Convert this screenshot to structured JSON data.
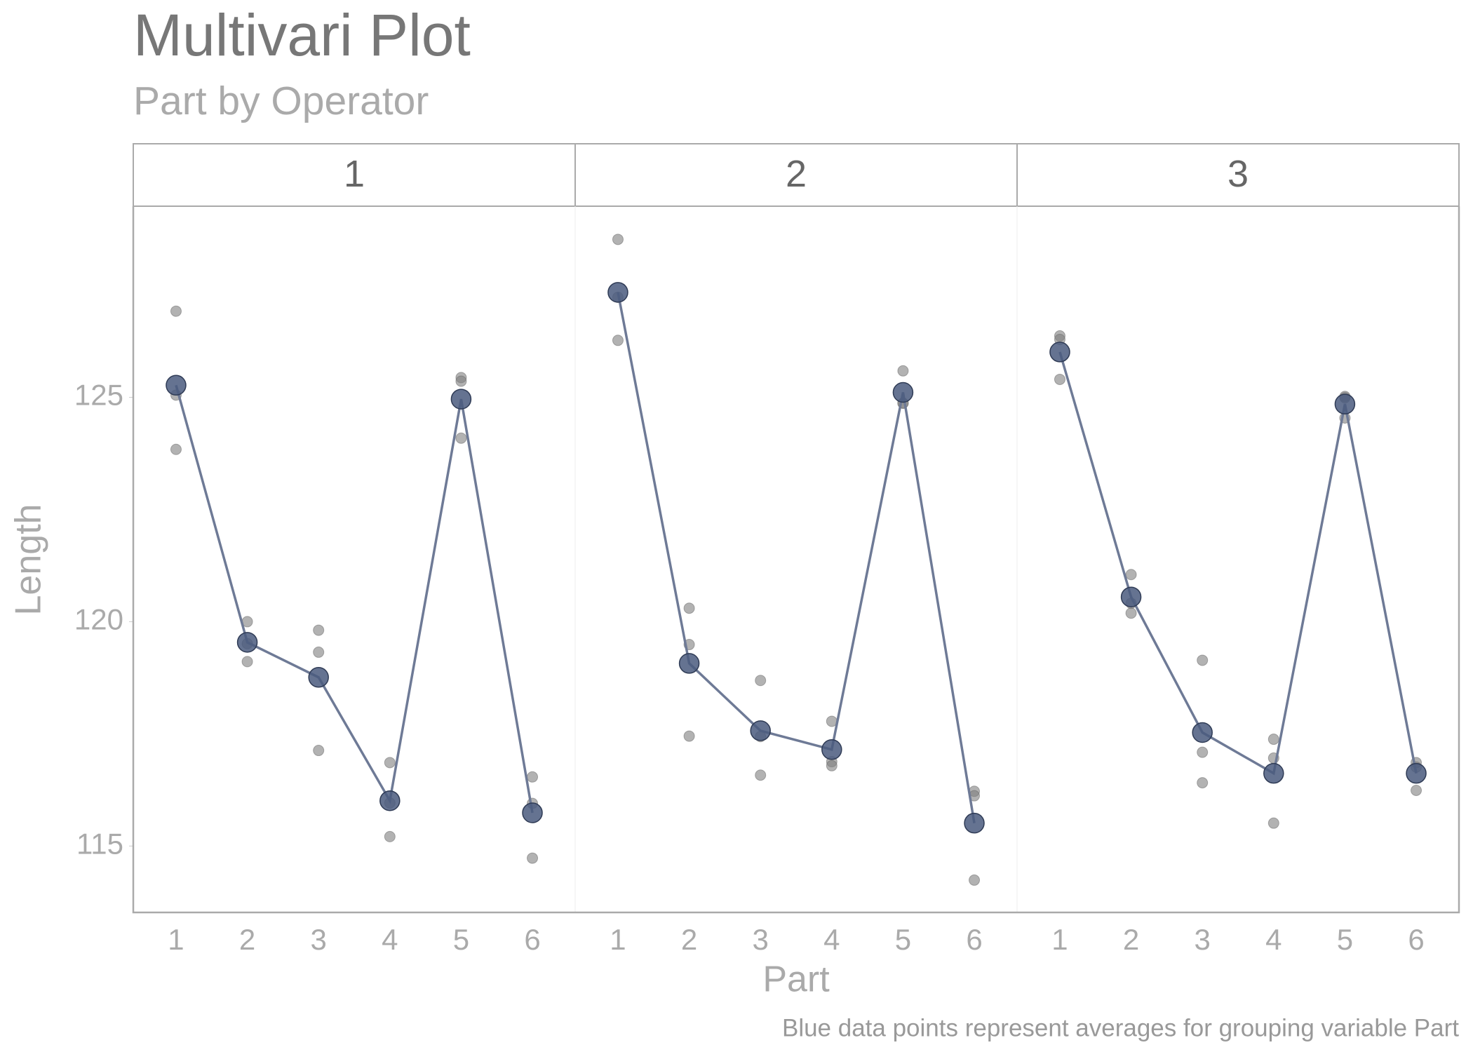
{
  "chart_data": {
    "type": "multivari",
    "title": "Multivari Plot",
    "subtitle": "Part by Operator",
    "x_label": "Part",
    "y_label": "Length",
    "caption": "Blue data points represent averages for grouping variable Part",
    "categories": [
      "1",
      "2",
      "3",
      "4",
      "5",
      "6"
    ],
    "ylim": [
      113.52,
      129.26
    ],
    "yticks": [
      115,
      120,
      125
    ],
    "raw_color": "#7f7f7f",
    "mean_color": "#4a5a7e",
    "line_color": "#6e7a96",
    "panels": [
      {
        "name": "1",
        "raw": [
          [
            126.92,
            123.84,
            125.05
          ],
          [
            120.0,
            119.11,
            119.51
          ],
          [
            119.81,
            119.32,
            117.13
          ],
          [
            116.86,
            115.21,
            115.96
          ],
          [
            125.44,
            125.36,
            124.09
          ],
          [
            116.54,
            115.95,
            114.73
          ]
        ],
        "means": [
          125.27,
          119.54,
          118.76,
          116.01,
          124.96,
          115.74
        ]
      },
      {
        "name": "2",
        "raw": [
          [
            128.52,
            126.27,
            127.23
          ],
          [
            120.3,
            119.49,
            117.45
          ],
          [
            118.69,
            116.58,
            117.44
          ],
          [
            117.78,
            116.88,
            116.79
          ],
          [
            125.59,
            124.87,
            124.87
          ],
          [
            116.22,
            116.12,
            114.24
          ]
        ],
        "means": [
          127.34,
          119.07,
          117.57,
          117.15,
          125.11,
          115.51
        ]
      },
      {
        "name": "3",
        "raw": [
          [
            126.37,
            126.29,
            125.4
          ],
          [
            121.05,
            120.19,
            120.41
          ],
          [
            119.14,
            117.09,
            116.41
          ],
          [
            117.38,
            116.96,
            115.51
          ],
          [
            125.02,
            124.54,
            124.99
          ],
          [
            116.86,
            116.24,
            116.76
          ]
        ],
        "means": [
          126.01,
          120.55,
          117.53,
          116.62,
          124.85,
          116.62
        ]
      }
    ]
  }
}
